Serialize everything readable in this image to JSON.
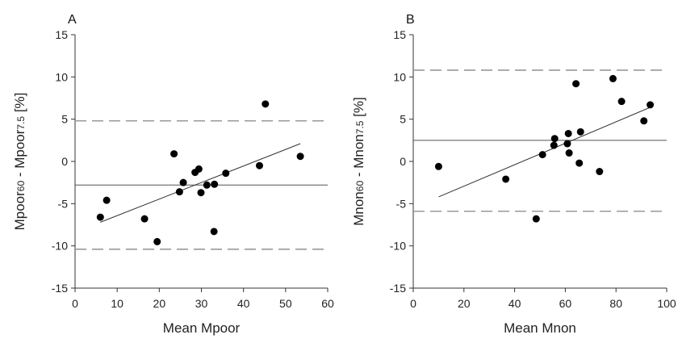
{
  "chart_data": [
    {
      "type": "scatter",
      "panel_label": "A",
      "xlabel": "Mean Mpoor",
      "ylabel": {
        "parts": [
          "Mpoor",
          "60",
          " - Mpoor",
          "7.5",
          " [%]"
        ]
      },
      "xlim": [
        0,
        60
      ],
      "ylim": [
        -15,
        15
      ],
      "xticks": [
        0,
        10,
        20,
        30,
        40,
        50,
        60
      ],
      "yticks": [
        -15,
        -10,
        -5,
        0,
        5,
        10,
        15
      ],
      "points": [
        {
          "x": 6,
          "y": -6.6
        },
        {
          "x": 7.5,
          "y": -4.6
        },
        {
          "x": 16.5,
          "y": -6.8
        },
        {
          "x": 19.5,
          "y": -9.5
        },
        {
          "x": 23.5,
          "y": 0.9
        },
        {
          "x": 24.8,
          "y": -3.6
        },
        {
          "x": 25.7,
          "y": -2.5
        },
        {
          "x": 28.5,
          "y": -1.3
        },
        {
          "x": 29.4,
          "y": -0.9
        },
        {
          "x": 29.9,
          "y": -3.7
        },
        {
          "x": 31.3,
          "y": -2.8
        },
        {
          "x": 33,
          "y": -8.3
        },
        {
          "x": 33.1,
          "y": -2.7
        },
        {
          "x": 35.8,
          "y": -1.4
        },
        {
          "x": 43.8,
          "y": -0.5
        },
        {
          "x": 45.2,
          "y": 6.8
        },
        {
          "x": 53.5,
          "y": 0.6
        }
      ],
      "mean_line": -2.8,
      "limits": [
        4.8,
        -10.4
      ],
      "regression": {
        "x": [
          6,
          53.5
        ],
        "y": [
          -7.2,
          2.1
        ]
      }
    },
    {
      "type": "scatter",
      "panel_label": "B",
      "xlabel": "Mean Mnon",
      "ylabel": {
        "parts": [
          "Mnon",
          "60",
          " - Mnon",
          "7.5",
          " [%]"
        ]
      },
      "xlim": [
        0,
        100
      ],
      "ylim": [
        -15,
        15
      ],
      "xticks": [
        0,
        20,
        40,
        60,
        80,
        100
      ],
      "yticks": [
        -15,
        -10,
        -5,
        0,
        5,
        10,
        15
      ],
      "points": [
        {
          "x": 10,
          "y": -0.6
        },
        {
          "x": 36.5,
          "y": -2.1
        },
        {
          "x": 48.5,
          "y": -6.8
        },
        {
          "x": 51,
          "y": 0.8
        },
        {
          "x": 55.5,
          "y": 1.9
        },
        {
          "x": 55.8,
          "y": 2.7
        },
        {
          "x": 60.8,
          "y": 2.1
        },
        {
          "x": 61.2,
          "y": 3.3
        },
        {
          "x": 61.5,
          "y": 1
        },
        {
          "x": 64.2,
          "y": 9.2
        },
        {
          "x": 65.5,
          "y": -0.2
        },
        {
          "x": 66,
          "y": 3.5
        },
        {
          "x": 73.5,
          "y": -1.2
        },
        {
          "x": 78.8,
          "y": 9.8
        },
        {
          "x": 82.2,
          "y": 7.1
        },
        {
          "x": 91,
          "y": 4.8
        },
        {
          "x": 93.5,
          "y": 6.7
        }
      ],
      "mean_line": 2.5,
      "limits": [
        10.8,
        -5.9
      ],
      "regression": {
        "x": [
          10,
          93.5
        ],
        "y": [
          -4.2,
          6.4
        ]
      }
    }
  ]
}
